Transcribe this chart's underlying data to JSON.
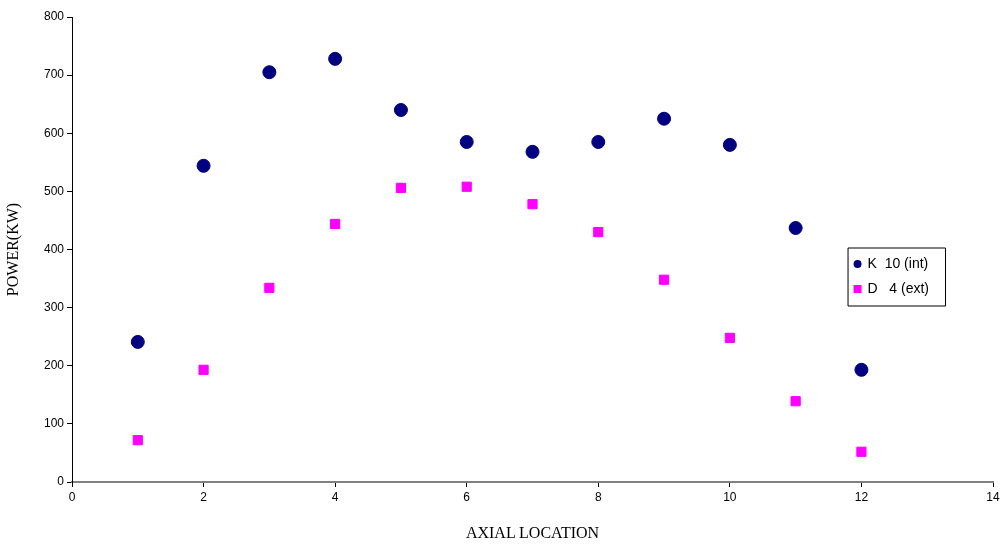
{
  "chart_data": {
    "type": "scatter",
    "xlabel": "AXIAL LOCATION",
    "ylabel": "POWER(KW)",
    "x": [
      1,
      2,
      3,
      4,
      5,
      6,
      7,
      8,
      9,
      10,
      11,
      12
    ],
    "series": [
      {
        "name": "K  10 (int)",
        "color": "#000080",
        "marker": "circle",
        "values": [
          241,
          544,
          705,
          728,
          640,
          585,
          568,
          585,
          625,
          580,
          437,
          193
        ]
      },
      {
        "name": "D   4 (ext)",
        "color": "#ff00ff",
        "marker": "square",
        "values": [
          72,
          193,
          334,
          444,
          506,
          508,
          478,
          430,
          348,
          248,
          139,
          52
        ]
      }
    ],
    "xlim": [
      0,
      14
    ],
    "xticks": [
      0,
      2,
      4,
      6,
      8,
      10,
      12,
      14
    ],
    "ylim": [
      0,
      800
    ],
    "yticks": [
      0,
      100,
      200,
      300,
      400,
      500,
      600,
      700,
      800
    ],
    "grid": false,
    "legend": "right"
  }
}
